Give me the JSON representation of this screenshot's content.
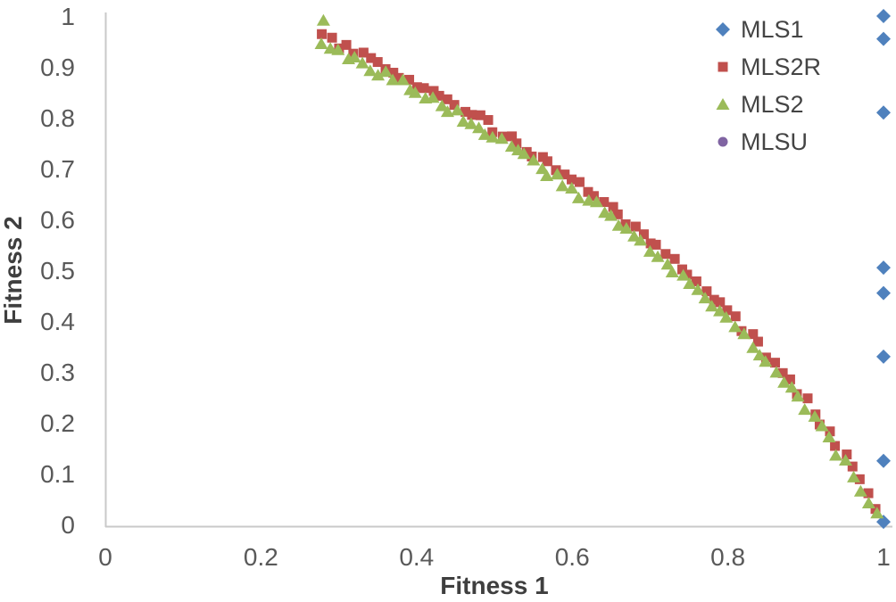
{
  "colors": {
    "mls1_blue": "#4F81BD",
    "mls2r_red": "#C0504D",
    "mls2_green": "#9BBB59",
    "mlsu_purple": "#8064A2",
    "axis_line": "#C9C9C9",
    "tick_text": "#595959",
    "axis_title_text": "#3F3F3F"
  },
  "chart_data": {
    "type": "scatter",
    "title": "",
    "xlabel": "Fitness 1",
    "ylabel": "Fitness 2",
    "xlim": [
      0,
      1
    ],
    "ylim": [
      0,
      1
    ],
    "grid": false,
    "legend_position": "top-right-inside",
    "x_ticks": {
      "values": [
        0,
        0.2,
        0.4,
        0.6,
        0.8,
        1
      ],
      "labels": [
        "0",
        "0.2",
        "0.4",
        "0.6",
        "0.8",
        "1"
      ]
    },
    "y_ticks": {
      "values": [
        0,
        0.1,
        0.2,
        0.3,
        0.4,
        0.5,
        0.6,
        0.7,
        0.8,
        0.9,
        1
      ],
      "labels": [
        "0",
        "0.1",
        "0.2",
        "0.3",
        "0.4",
        "0.5",
        "0.6",
        "0.7",
        "0.8",
        "0.9",
        "1"
      ]
    },
    "shared_x": [
      0.28,
      0.29,
      0.3,
      0.31,
      0.32,
      0.33,
      0.34,
      0.35,
      0.36,
      0.37,
      0.38,
      0.39,
      0.4,
      0.41,
      0.42,
      0.43,
      0.44,
      0.45,
      0.46,
      0.47,
      0.48,
      0.49,
      0.5,
      0.51,
      0.52,
      0.53,
      0.54,
      0.55,
      0.56,
      0.57,
      0.58,
      0.59,
      0.6,
      0.61,
      0.62,
      0.63,
      0.64,
      0.65,
      0.66,
      0.67,
      0.68,
      0.69,
      0.7,
      0.71,
      0.72,
      0.73,
      0.74,
      0.75,
      0.76,
      0.77,
      0.78,
      0.79,
      0.8,
      0.81,
      0.82,
      0.83,
      0.84,
      0.85,
      0.86,
      0.87,
      0.88,
      0.89,
      0.9,
      0.91,
      0.92,
      0.93,
      0.94,
      0.95,
      0.96,
      0.97,
      0.98,
      0.99
    ],
    "series": [
      {
        "name": "MLS1",
        "marker": "diamond",
        "color": "#4F81BD",
        "points": [
          [
            1,
            1.0
          ],
          [
            1,
            0.955
          ],
          [
            1,
            0.81
          ],
          [
            1,
            0.505
          ],
          [
            1,
            0.455
          ],
          [
            1,
            0.33
          ],
          [
            1,
            0.125
          ],
          [
            1,
            0.005
          ]
        ]
      },
      {
        "name": "MLS2R",
        "marker": "square",
        "color": "#C0504D",
        "y": [
          0.958,
          0.951,
          0.944,
          0.937,
          0.929,
          0.922,
          0.914,
          0.907,
          0.899,
          0.891,
          0.883,
          0.875,
          0.867,
          0.859,
          0.85,
          0.842,
          0.833,
          0.824,
          0.816,
          0.807,
          0.797,
          0.788,
          0.779,
          0.769,
          0.76,
          0.75,
          0.74,
          0.73,
          0.72,
          0.709,
          0.699,
          0.688,
          0.677,
          0.666,
          0.655,
          0.644,
          0.632,
          0.62,
          0.608,
          0.596,
          0.584,
          0.572,
          0.559,
          0.546,
          0.533,
          0.519,
          0.505,
          0.492,
          0.477,
          0.463,
          0.448,
          0.433,
          0.418,
          0.402,
          0.386,
          0.369,
          0.353,
          0.336,
          0.318,
          0.3,
          0.281,
          0.262,
          0.243,
          0.223,
          0.202,
          0.181,
          0.159,
          0.136,
          0.113,
          0.088,
          0.063,
          0.036
        ]
      },
      {
        "name": "MLS2",
        "marker": "triangle",
        "color": "#9BBB59",
        "points": [
          [
            0.283,
            0.99
          ]
        ],
        "y": [
          0.942,
          0.935,
          0.928,
          0.921,
          0.913,
          0.906,
          0.898,
          0.891,
          0.883,
          0.875,
          0.867,
          0.859,
          0.851,
          0.843,
          0.834,
          0.826,
          0.817,
          0.808,
          0.8,
          0.791,
          0.781,
          0.772,
          0.763,
          0.753,
          0.744,
          0.734,
          0.724,
          0.714,
          0.704,
          0.693,
          0.683,
          0.672,
          0.661,
          0.65,
          0.639,
          0.628,
          0.616,
          0.604,
          0.592,
          0.58,
          0.568,
          0.556,
          0.543,
          0.53,
          0.517,
          0.503,
          0.489,
          0.476,
          0.461,
          0.447,
          0.432,
          0.417,
          0.402,
          0.386,
          0.37,
          0.353,
          0.337,
          0.32,
          0.302,
          0.284,
          0.265,
          0.246,
          0.227,
          0.207,
          0.186,
          0.165,
          0.143,
          0.12,
          0.097,
          0.072,
          0.047,
          0.02
        ]
      },
      {
        "name": "MLSU",
        "marker": "circle",
        "color": "#8064A2",
        "points": []
      }
    ]
  }
}
